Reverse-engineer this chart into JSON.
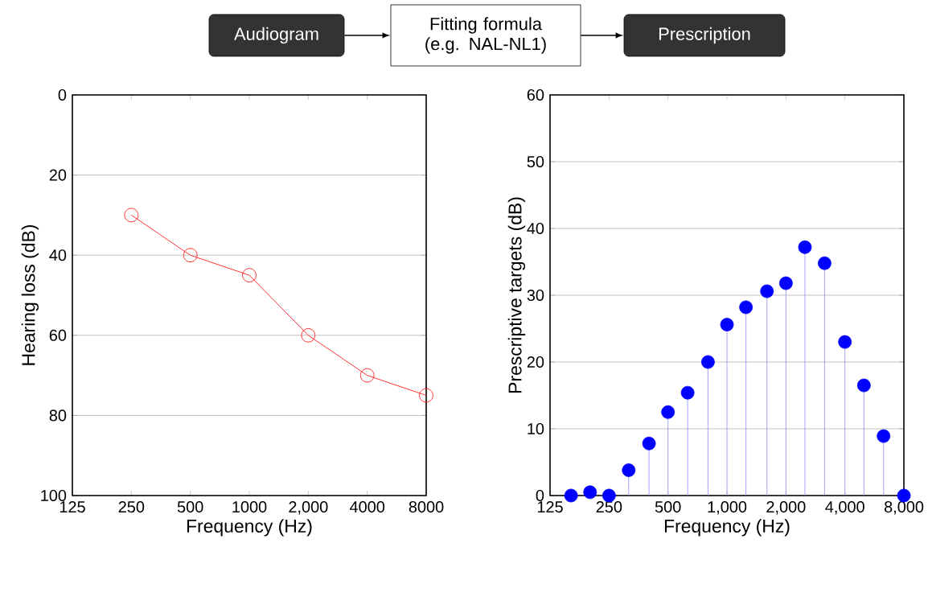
{
  "chart_data": [
    {
      "type": "other",
      "annotations": [
        "Audiogram",
        "Fitting formula (e.g. NAL-NL1)",
        "Prescription"
      ]
    },
    {
      "type": "line",
      "xlabel": "Frequency (Hz)",
      "ylabel": "Hearing loss (dB)",
      "log": "x",
      "x": [
        250,
        500,
        1000,
        2000,
        4000,
        8000
      ],
      "series": [
        {
          "color": "#ff0000",
          "values": [
            30,
            40,
            45,
            60,
            70,
            75
          ]
        }
      ],
      "xlim": [
        125,
        8000
      ],
      "ylim": [
        100,
        0
      ],
      "xticks": [
        125,
        250,
        500,
        1000,
        {
          "value": 2000,
          "label": "2,000"
        },
        4000,
        8000
      ],
      "yticks": [
        0,
        20,
        40,
        60,
        80,
        100
      ],
      "grid": "y",
      "marker": "circle"
    },
    {
      "type": "lollipop",
      "xlabel": "Frequency (Hz)",
      "ylabel": "Prescriptive targets (dB)",
      "log": "x",
      "x": [
        160,
        200,
        250,
        315,
        400,
        500,
        630,
        800,
        1000,
        1250,
        1600,
        2000,
        2500,
        3150,
        4000,
        5000,
        6300,
        8000
      ],
      "series": [
        {
          "color": "#0000ff",
          "values": [
            0,
            0.5,
            0,
            3.8,
            7.8,
            12.5,
            15.4,
            20,
            25.6,
            28.2,
            30.6,
            31.8,
            37.2,
            34.8,
            23,
            16.5,
            8.9,
            0
          ]
        }
      ],
      "xlim": [
        125,
        8000
      ],
      "ylim": [
        0,
        60
      ],
      "xticks": [
        125,
        250,
        500,
        {
          "value": 1000,
          "label": "1,000"
        },
        {
          "value": 2000,
          "label": "2,000"
        },
        {
          "value": 4000,
          "label": "4,000"
        },
        {
          "value": 8000,
          "label": "8,000"
        }
      ],
      "yticks": [
        0,
        10,
        20,
        30,
        40,
        50,
        60
      ],
      "grid": "y",
      "marker": "circle"
    }
  ]
}
